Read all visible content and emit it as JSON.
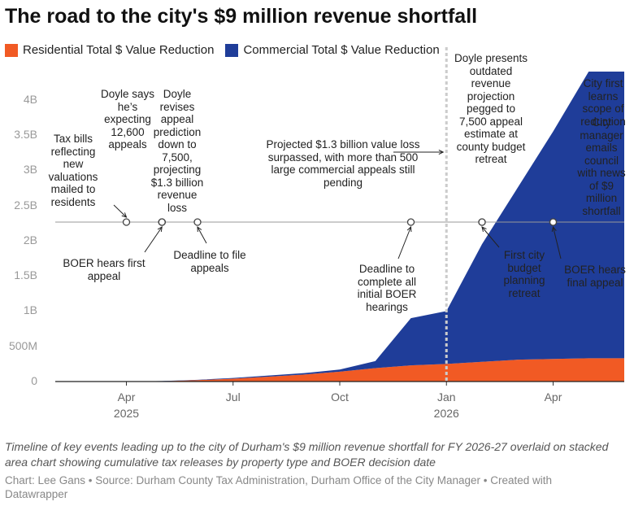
{
  "chart_data": {
    "type": "stacked_area",
    "title": "The road to the city's $9 million revenue shortfall",
    "caption": "Timeline of key events leading up to the city of Durham's $9 million revenue shortfall for FY 2026-27 overlaid on stacked area chart showing cumulative tax releases by property type and BOER decision date",
    "credit": "Chart: Lee Gans • Source: Durham County Tax Administration, Durham Office of the City Manager • Created with Datawrapper",
    "x": [
      "2025-02",
      "2025-03",
      "2025-04",
      "2025-05",
      "2025-06",
      "2025-07",
      "2025-08",
      "2025-09",
      "2025-10",
      "2025-11",
      "2025-12",
      "2026-01",
      "2026-02",
      "2026-03",
      "2026-04",
      "2026-05",
      "2026-06"
    ],
    "xlim": [
      "2025-02",
      "2026-06"
    ],
    "xticks": [
      {
        "value": "2025-04",
        "label": "Apr 2025"
      },
      {
        "value": "2025-07",
        "label": "Jul"
      },
      {
        "value": "2025-10",
        "label": "Oct"
      },
      {
        "value": "2026-01",
        "label": "Jan 2026"
      },
      {
        "value": "2026-04",
        "label": "Apr"
      }
    ],
    "ylim": [
      0,
      4400000000
    ],
    "yticks": [
      {
        "value": 0,
        "label": "0"
      },
      {
        "value": 500000000,
        "label": "500M"
      },
      {
        "value": 1000000000,
        "label": "1B"
      },
      {
        "value": 1500000000,
        "label": "1.5B"
      },
      {
        "value": 2000000000,
        "label": "2B"
      },
      {
        "value": 2500000000,
        "label": "2.5B"
      },
      {
        "value": 3000000000,
        "label": "3B"
      },
      {
        "value": 3500000000,
        "label": "3.5B"
      },
      {
        "value": 4000000000,
        "label": "4B"
      }
    ],
    "grid": false,
    "series": [
      {
        "name": "Residential Total $ Value Reduction",
        "color": "#f15a24",
        "values": [
          0,
          0,
          0,
          5000000,
          20000000,
          40000000,
          70000000,
          100000000,
          140000000,
          190000000,
          230000000,
          250000000,
          280000000,
          310000000,
          320000000,
          330000000,
          330000000
        ]
      },
      {
        "name": "Commercial Total $ Value Reduction",
        "color": "#1f3d99",
        "values": [
          0,
          0,
          0,
          2000000,
          5000000,
          10000000,
          15000000,
          20000000,
          30000000,
          100000000,
          670000000,
          750000000,
          1670000000,
          2440000000,
          3230000000,
          4070000000,
          4070000000
        ]
      }
    ],
    "events": [
      {
        "date": "2025-04",
        "label": "Tax bills reflecting new valuations mailed to residents"
      },
      {
        "date": "2025-05",
        "label": "Doyle says he’s expecting 12,600 appeals"
      },
      {
        "date": "2025-05",
        "label": "Doyle revises appeal prediction down to 7,500, projecting $1.3 billion revenue loss"
      },
      {
        "date": "2025-05",
        "label": "BOER hears first appeal"
      },
      {
        "date": "2025-06",
        "label": "Deadline to file appeals"
      },
      {
        "date": "2025-12",
        "label": "Deadline to complete all initial BOER hearings"
      },
      {
        "date": "2026-02",
        "label": "Doyle presents outdated revenue projection pegged to 7,500 appeal estimate at county budget retreat"
      },
      {
        "date": "2026-02",
        "label": "First city budget planning retreat"
      },
      {
        "date": "2026-04",
        "label": "City first learns scope of reduction"
      },
      {
        "date": "2026-04",
        "label": "City manager emails council with news of $9 million shortfall"
      },
      {
        "date": "2026-04",
        "label": "BOER hears final appeal"
      }
    ],
    "marker": {
      "date": "2026-01",
      "label": "Projected $1.3 billion value loss surpassed, with more than 500 large commercial appeals still pending"
    }
  }
}
